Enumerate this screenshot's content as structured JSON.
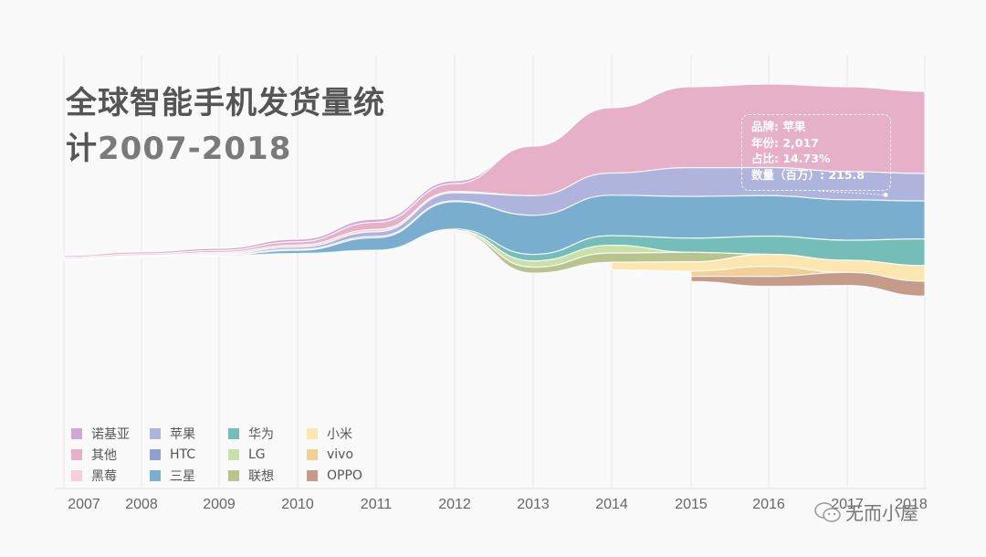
{
  "title": {
    "line1": "全球智能手机发货量统",
    "line2_prefix": "计",
    "line2_years": "2007-2018"
  },
  "tooltip": {
    "brand": "品牌: 苹果",
    "year": "年份: 2,017",
    "share": "占比: 14.73%",
    "quantity": "数量（百万）: 215.8"
  },
  "watermark": {
    "text": "无而小屋",
    "icon": "wechat-icon"
  },
  "chart_data": {
    "type": "area",
    "subtype": "streamgraph",
    "title": "全球智能手机发货量统计2007-2018",
    "xlabel": "",
    "ylabel": "数量（百万）",
    "x": [
      2007,
      2008,
      2009,
      2010,
      2011,
      2012,
      2013,
      2014,
      2015,
      2016,
      2017,
      2018
    ],
    "tick_labels": [
      "2007",
      "2008",
      "2009",
      "2010",
      "2011",
      "2012",
      "2013",
      "2014",
      "2015",
      "2016",
      "2017",
      "2018"
    ],
    "grid": true,
    "legend_position": "bottom-left",
    "series": [
      {
        "name": "诺基亚",
        "color": "#cfa6d4",
        "values": [
          13,
          15,
          16,
          20,
          24,
          22,
          0,
          0,
          0,
          0,
          0,
          0
        ]
      },
      {
        "name": "其他",
        "color": "#e6b0c8",
        "values": [
          10,
          12,
          15,
          25,
          55,
          60,
          380,
          500,
          620,
          640,
          650,
          630
        ]
      },
      {
        "name": "黑莓",
        "color": "#f6d0d8",
        "values": [
          4,
          8,
          11,
          15,
          18,
          10,
          0,
          0,
          0,
          0,
          0,
          0
        ]
      },
      {
        "name": "苹果",
        "color": "#aeb4dc",
        "values": [
          1,
          3,
          8,
          18,
          36,
          62,
          150,
          170,
          220,
          215,
          215.8,
          210
        ]
      },
      {
        "name": "HTC",
        "color": "#8f9fcf",
        "values": [
          0.5,
          1,
          2,
          7,
          10,
          6,
          0,
          0,
          0,
          0,
          0,
          0
        ]
      },
      {
        "name": "三星",
        "color": "#7aaecf",
        "values": [
          0.5,
          1,
          3,
          24,
          95,
          210,
          300,
          310,
          320,
          310,
          310,
          290
        ]
      },
      {
        "name": "华为",
        "color": "#74bdb8",
        "values": [
          0,
          0,
          0,
          0,
          0,
          10,
          50,
          73,
          108,
          139,
          153,
          205
        ]
      },
      {
        "name": "LG",
        "color": "#c9e0a8",
        "values": [
          0,
          0,
          0,
          0,
          0,
          8,
          48,
          60,
          0,
          0,
          0,
          0
        ]
      },
      {
        "name": "联想",
        "color": "#b8c38e",
        "values": [
          0,
          0,
          0,
          0,
          0,
          8,
          45,
          70,
          73,
          0,
          0,
          0
        ]
      },
      {
        "name": "小米",
        "color": "#fbe6b0",
        "values": [
          0,
          0,
          0,
          0,
          0,
          0,
          0,
          57,
          71,
          93,
          93,
          120
        ]
      },
      {
        "name": "vivo",
        "color": "#f3cf98",
        "values": [
          0,
          0,
          0,
          0,
          0,
          0,
          0,
          0,
          40,
          77,
          0,
          0
        ]
      },
      {
        "name": "OPPO",
        "color": "#c49a88",
        "values": [
          0,
          0,
          0,
          0,
          0,
          0,
          0,
          0,
          40,
          75,
          100,
          113
        ]
      }
    ],
    "highlight": {
      "series": "苹果",
      "x": 2017,
      "share_percent": 14.73,
      "value": 215.8
    }
  },
  "legend": {
    "columns": [
      [
        {
          "label": "诺基亚",
          "color": "#cfa6d4"
        },
        {
          "label": "其他",
          "color": "#e6b0c8"
        },
        {
          "label": "黑莓",
          "color": "#f6d0d8"
        }
      ],
      [
        {
          "label": "苹果",
          "color": "#aeb4dc"
        },
        {
          "label": "HTC",
          "color": "#8f9fcf"
        },
        {
          "label": "三星",
          "color": "#7aaecf"
        }
      ],
      [
        {
          "label": "华为",
          "color": "#74bdb8"
        },
        {
          "label": "LG",
          "color": "#c9e0a8"
        },
        {
          "label": "联想",
          "color": "#b8c38e"
        }
      ],
      [
        {
          "label": "小米",
          "color": "#fbe6b0"
        },
        {
          "label": "vivo",
          "color": "#f3cf98"
        },
        {
          "label": "OPPO",
          "color": "#c49a88"
        }
      ]
    ]
  }
}
